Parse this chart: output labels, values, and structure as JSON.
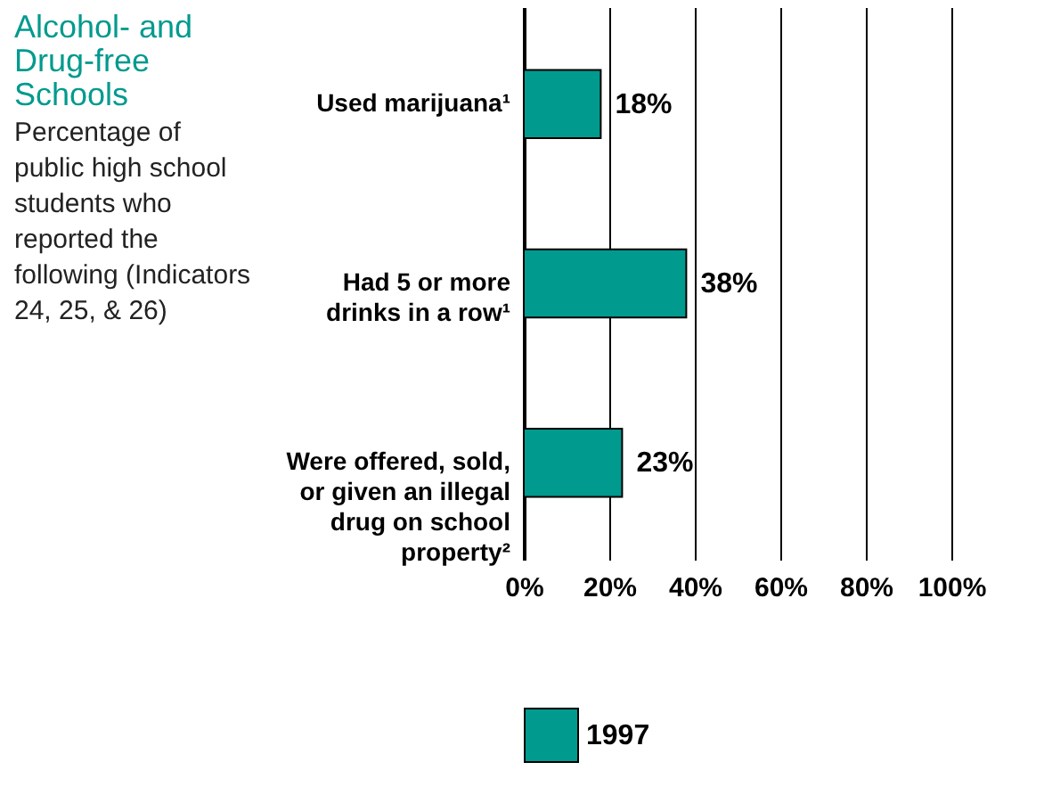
{
  "chart_data": {
    "type": "bar",
    "orientation": "horizontal",
    "title": "Alcohol- and Drug-free Schools",
    "subtitle": "Percentage of public high school students who reported the following (Indicators 24, 25, & 26)",
    "categories": [
      "Used marijuana¹",
      "Had 5 or more drinks in a row¹",
      "Were offered, sold, or given an illegal drug on school property²"
    ],
    "series": [
      {
        "name": "1997",
        "color": "#009a8e",
        "values": [
          18,
          38,
          23
        ],
        "value_labels": [
          "18%",
          "38%",
          "23%"
        ]
      }
    ],
    "xlim": [
      0,
      100
    ],
    "xticks": [
      {
        "value": 0,
        "label": "0%"
      },
      {
        "value": 20,
        "label": "20%"
      },
      {
        "value": 40,
        "label": "40%"
      },
      {
        "value": 60,
        "label": "60%"
      },
      {
        "value": 80,
        "label": "80%"
      },
      {
        "value": 100,
        "label": "100%"
      }
    ],
    "grid": "x",
    "legend": "bottom"
  }
}
